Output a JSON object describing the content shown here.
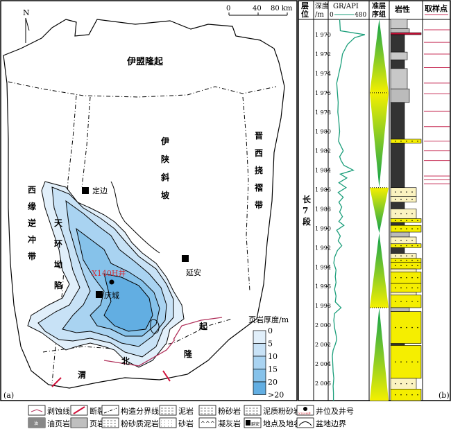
{
  "map": {
    "panel_label": "(a)",
    "north": "N",
    "scale": {
      "zero": "0",
      "mid": "40",
      "end": "80 km"
    },
    "regions": {
      "yimeng": "伊盟隆起",
      "yishan": [
        "伊",
        "陕",
        "斜",
        "坡"
      ],
      "jinxi": [
        "晋",
        "西",
        "挠",
        "褶",
        "带"
      ],
      "xiyuan": [
        "西",
        "缘",
        "逆",
        "冲",
        "带"
      ],
      "tianhuan": [
        "天",
        "环",
        "坳",
        "陷"
      ],
      "weibei": [
        "渭",
        "北",
        "隆",
        "起"
      ]
    },
    "places": {
      "dingbian": "定边",
      "yanan": "延安",
      "qingcheng": "庆城"
    },
    "well": "X140H井",
    "thickness_legend": {
      "title": "页岩厚度/m",
      "labels": [
        "0",
        "5",
        "10",
        "15",
        "20",
        ">20"
      ],
      "colors": [
        "#ffffff",
        "#e1effa",
        "#c8e2f6",
        "#a9d3f1",
        "#86c2ea",
        "#62aee2"
      ]
    }
  },
  "log": {
    "panel_label": "(b)",
    "headers": {
      "layer": "层位",
      "depth": "深度/m",
      "gr": "GR/API",
      "gr_min": "0",
      "gr_max": "480",
      "seq": "准层序组",
      "lith": "岩性",
      "sample": "取样点"
    },
    "layer_name": [
      "长",
      "7",
      "段"
    ],
    "depth_labels": [
      "1 970",
      "1 972",
      "1 974",
      "1 976",
      "1 978",
      "1 980",
      "1 982",
      "1 984",
      "1 986",
      "1 988",
      "1 990",
      "1 992",
      "1 994",
      "1 996",
      "1 998",
      "2 000",
      "2 002",
      "2 004",
      "2 006"
    ],
    "depth_values": [
      1970,
      1972,
      1974,
      1976,
      1978,
      1980,
      1982,
      1984,
      1986,
      1988,
      1990,
      1992,
      1994,
      1996,
      1998,
      2000,
      2002,
      2004,
      2006
    ],
    "gr_color": "#1a9e7a",
    "gr_curve": [
      [
        1968.4,
        110
      ],
      [
        1969,
        115
      ],
      [
        1969.6,
        120
      ],
      [
        1970,
        460
      ],
      [
        1970.3,
        320
      ],
      [
        1971,
        220
      ],
      [
        1972,
        150
      ],
      [
        1973,
        130
      ],
      [
        1974,
        100
      ],
      [
        1975,
        70
      ],
      [
        1976,
        80
      ],
      [
        1977,
        90
      ],
      [
        1978,
        85
      ],
      [
        1979,
        100
      ],
      [
        1980,
        110
      ],
      [
        1981,
        95
      ],
      [
        1982,
        160
      ],
      [
        1982.6,
        110
      ],
      [
        1983,
        130
      ],
      [
        1983.5,
        170
      ],
      [
        1984,
        300
      ],
      [
        1984.4,
        120
      ],
      [
        1984.8,
        210
      ],
      [
        1985.3,
        100
      ],
      [
        1985.8,
        200
      ],
      [
        1986.3,
        90
      ],
      [
        1986.8,
        160
      ],
      [
        1987.3,
        100
      ],
      [
        1987.8,
        140
      ],
      [
        1988.3,
        110
      ],
      [
        1988.8,
        150
      ],
      [
        1989.3,
        100
      ],
      [
        1989.7,
        170
      ],
      [
        1990.2,
        70
      ],
      [
        1990.8,
        120
      ],
      [
        1991.3,
        90
      ],
      [
        1991.8,
        140
      ],
      [
        1992.3,
        80
      ],
      [
        1993,
        40
      ],
      [
        1993.6,
        30
      ],
      [
        1994.3,
        60
      ],
      [
        1995,
        50
      ],
      [
        1995.6,
        60
      ],
      [
        1996.3,
        40
      ],
      [
        1997,
        60
      ],
      [
        1997.6,
        50
      ],
      [
        1998.2,
        130
      ],
      [
        1998.8,
        40
      ],
      [
        1999.5,
        30
      ],
      [
        2000.3,
        40
      ],
      [
        2001,
        60
      ],
      [
        2001.5,
        70
      ],
      [
        2002,
        50
      ],
      [
        2002.6,
        20
      ],
      [
        2003.2,
        10
      ],
      [
        2004,
        15
      ],
      [
        2004.8,
        20
      ],
      [
        2005.5,
        30
      ],
      [
        2006.3,
        20
      ],
      [
        2007,
        25
      ],
      [
        2007.8,
        25
      ]
    ],
    "sequence_breaks": [
      1968.4,
      1976,
      1985.8,
      1990.5,
      1998.2,
      2007.8
    ],
    "lithology": [
      {
        "top": 1968.4,
        "bot": 1969.4,
        "type": "silty_mud"
      },
      {
        "top": 1969.4,
        "bot": 1969.8,
        "type": "mudstone"
      },
      {
        "top": 1969.8,
        "bot": 1970,
        "type": "fault"
      },
      {
        "top": 1970,
        "bot": 1971.8,
        "type": "shale"
      },
      {
        "top": 1971.8,
        "bot": 1972.6,
        "type": "silty_mud"
      },
      {
        "top": 1972.6,
        "bot": 1973.5,
        "type": "shale"
      },
      {
        "top": 1973.5,
        "bot": 1975.6,
        "type": "silty_mud"
      },
      {
        "top": 1975.6,
        "bot": 1977,
        "type": "mudstone"
      },
      {
        "top": 1977,
        "bot": 1980.8,
        "type": "shale"
      },
      {
        "top": 1980.8,
        "bot": 1981.2,
        "type": "sandstone"
      },
      {
        "top": 1981.2,
        "bot": 1985.8,
        "type": "shale"
      },
      {
        "top": 1985.8,
        "bot": 1986.7,
        "type": "siltstone"
      },
      {
        "top": 1986.7,
        "bot": 1987.3,
        "type": "siltstone"
      },
      {
        "top": 1987.3,
        "bot": 1988,
        "type": "shale"
      },
      {
        "top": 1988,
        "bot": 1989,
        "type": "siltstone"
      },
      {
        "top": 1989,
        "bot": 1989.4,
        "type": "sandstone"
      },
      {
        "top": 1989.4,
        "bot": 1989.7,
        "type": "shale"
      },
      {
        "top": 1989.7,
        "bot": 1990.4,
        "type": "sandstone"
      },
      {
        "top": 1990.4,
        "bot": 1990.9,
        "type": "mudstone"
      },
      {
        "top": 1990.9,
        "bot": 1991.6,
        "type": "siltstone"
      },
      {
        "top": 1991.6,
        "bot": 1992,
        "type": "sandstone"
      },
      {
        "top": 1992,
        "bot": 1992.6,
        "type": "shale"
      },
      {
        "top": 1992.6,
        "bot": 1993.1,
        "type": "siltstone"
      },
      {
        "top": 1993.1,
        "bot": 1993.5,
        "type": "sandstone"
      },
      {
        "top": 1993.5,
        "bot": 1994.2,
        "type": "sandstone"
      },
      {
        "top": 1994.2,
        "bot": 1994.5,
        "type": "siltstone"
      },
      {
        "top": 1994.5,
        "bot": 1995.7,
        "type": "sandstone"
      },
      {
        "top": 1995.7,
        "bot": 1996.6,
        "type": "sandstone"
      },
      {
        "top": 1996.6,
        "bot": 1996.9,
        "type": "siltstone"
      },
      {
        "top": 1996.9,
        "bot": 1998.2,
        "type": "sandstone"
      },
      {
        "top": 1998.2,
        "bot": 1998.6,
        "type": "mudstone"
      },
      {
        "top": 1998.6,
        "bot": 2001.9,
        "type": "sandstone"
      },
      {
        "top": 2001.9,
        "bot": 2002.1,
        "type": "shale"
      },
      {
        "top": 2002.1,
        "bot": 2005.5,
        "type": "sandstone"
      },
      {
        "top": 2005.5,
        "bot": 2006.6,
        "type": "siltstone"
      },
      {
        "top": 2006.6,
        "bot": 2007.8,
        "type": "sandstone"
      }
    ],
    "samples": [
      1969.5,
      1970.8,
      1972,
      1973.4,
      1975,
      1976.1,
      1977.9,
      1979.5,
      1981,
      1982,
      1983,
      1984.6,
      1985,
      1985.4
    ],
    "sample_color": "#c8325a"
  },
  "legend": [
    {
      "label": "剥蚀线",
      "icon": "erosion-line-icon"
    },
    {
      "label": "断裂",
      "icon": "fault-icon"
    },
    {
      "label": "构造分界线",
      "icon": "tectonic-boundary-icon"
    },
    {
      "label": "泥岩",
      "icon": "mudstone-icon"
    },
    {
      "label": "粉砂岩",
      "icon": "siltstone-icon"
    },
    {
      "label": "泥质粉砂岩",
      "icon": "muddy-siltstone-icon"
    },
    {
      "label": "井位及井号",
      "icon": "well-icon",
      "sub": "X140H井"
    },
    {
      "label": "油页岩",
      "icon": "oil-shale-icon",
      "sub": "油"
    },
    {
      "label": "页岩",
      "icon": "shale-icon"
    },
    {
      "label": "粉砂质泥岩",
      "icon": "silty-mudstone-icon"
    },
    {
      "label": "砂岩",
      "icon": "sandstone-icon"
    },
    {
      "label": "凝灰岩",
      "icon": "tuff-icon"
    },
    {
      "label": "地点及地名",
      "icon": "place-icon",
      "sub": "延安"
    },
    {
      "label": "盆地边界",
      "icon": "basin-boundary-icon"
    }
  ]
}
